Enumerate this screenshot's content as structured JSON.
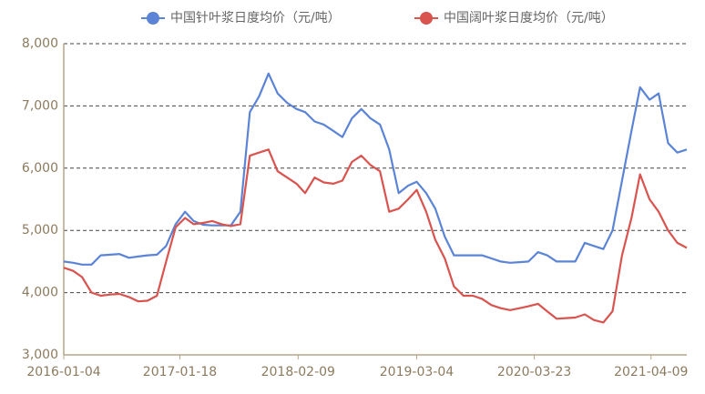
{
  "chart_data": {
    "type": "line",
    "x": [
      "2016-01-04",
      "2016-02-04",
      "2016-03-04",
      "2016-04-04",
      "2016-05-04",
      "2016-06-04",
      "2016-07-04",
      "2016-08-04",
      "2016-09-04",
      "2016-10-04",
      "2016-11-04",
      "2016-12-04",
      "2017-01-04",
      "2017-02-04",
      "2017-03-04",
      "2017-04-04",
      "2017-05-04",
      "2017-06-04",
      "2017-07-04",
      "2017-08-04",
      "2017-09-04",
      "2017-10-04",
      "2017-11-04",
      "2017-12-04",
      "2018-01-04",
      "2018-02-04",
      "2018-03-04",
      "2018-04-04",
      "2018-05-04",
      "2018-06-04",
      "2018-07-04",
      "2018-08-04",
      "2018-09-04",
      "2018-10-04",
      "2018-11-04",
      "2018-12-04",
      "2019-01-04",
      "2019-02-04",
      "2019-03-04",
      "2019-04-04",
      "2019-05-04",
      "2019-06-04",
      "2019-07-04",
      "2019-08-04",
      "2019-09-04",
      "2019-10-04",
      "2019-11-04",
      "2019-12-04",
      "2020-01-04",
      "2020-02-04",
      "2020-03-04",
      "2020-04-04",
      "2020-05-04",
      "2020-06-04",
      "2020-07-04",
      "2020-08-04",
      "2020-09-04",
      "2020-10-04",
      "2020-11-04",
      "2020-12-04",
      "2021-01-04",
      "2021-02-04",
      "2021-03-04",
      "2021-04-04",
      "2021-05-04",
      "2021-06-04",
      "2021-07-04",
      "2021-08-04"
    ],
    "series": [
      {
        "name": "中国针叶浆日度均价（元/吨）",
        "color": "#5b84d6",
        "values": [
          4500,
          4480,
          4450,
          4450,
          4600,
          4610,
          4620,
          4560,
          4580,
          4600,
          4610,
          4750,
          5100,
          5300,
          5150,
          5090,
          5080,
          5080,
          5080,
          5300,
          6900,
          7150,
          7520,
          7200,
          7050,
          6950,
          6900,
          6750,
          6700,
          6600,
          6500,
          6800,
          6950,
          6800,
          6700,
          6300,
          5600,
          5720,
          5780,
          5600,
          5350,
          4900,
          4600,
          4600,
          4600,
          4600,
          4550,
          4500,
          4480,
          4490,
          4500,
          4650,
          4600,
          4500,
          4500,
          4500,
          4800,
          4750,
          4700,
          5000,
          5800,
          6600,
          7300,
          7100,
          7200,
          6400,
          6250,
          6300
        ]
      },
      {
        "name": "中国阔叶浆日度均价（元/吨）",
        "color": "#d9534f",
        "values": [
          4400,
          4350,
          4250,
          4000,
          3950,
          3970,
          3980,
          3930,
          3860,
          3870,
          3950,
          4500,
          5050,
          5200,
          5100,
          5120,
          5150,
          5100,
          5070,
          5100,
          6200,
          6250,
          6300,
          5950,
          5850,
          5750,
          5600,
          5850,
          5770,
          5750,
          5800,
          6100,
          6200,
          6050,
          5950,
          5300,
          5350,
          5500,
          5650,
          5300,
          4850,
          4550,
          4100,
          3950,
          3950,
          3900,
          3800,
          3750,
          3720,
          3750,
          3780,
          3820,
          3700,
          3580,
          3590,
          3600,
          3650,
          3560,
          3520,
          3700,
          4600,
          5200,
          5900,
          5500,
          5300,
          5000,
          4800,
          4720
        ]
      }
    ],
    "xlim": [
      "2016-01-04",
      "2021-08-04"
    ],
    "xticks": [
      "2016-01-04",
      "2017-01-18",
      "2018-02-09",
      "2019-03-04",
      "2020-03-23",
      "2021-04-09"
    ],
    "ylim": [
      3000,
      8000
    ],
    "yticks": [
      {
        "value": 3000,
        "label": "3,000"
      },
      {
        "value": 4000,
        "label": "4,000"
      },
      {
        "value": 5000,
        "label": "5,000"
      },
      {
        "value": 6000,
        "label": "6,000"
      },
      {
        "value": 7000,
        "label": "7,000"
      },
      {
        "value": 8000,
        "label": "8,000"
      }
    ],
    "grid": true
  }
}
